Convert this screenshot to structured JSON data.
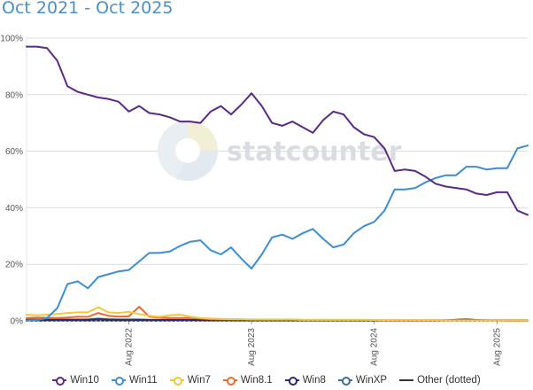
{
  "subtitle": "Oct 2021 - Oct 2025",
  "watermark": "statcounter",
  "chart_data": {
    "type": "line",
    "subtitle": "Oct 2021 - Oct 2025",
    "x_start": "2021-10",
    "x_tick_labels": [
      "Aug 2022",
      "Aug 2023",
      "Aug 2024",
      "Aug 2025"
    ],
    "x_tick_months": [
      "2022-08",
      "2023-08",
      "2024-08",
      "2025-08"
    ],
    "y_tick_labels": [
      "0%",
      "20%",
      "40%",
      "60%",
      "80%",
      "100%"
    ],
    "ylim": [
      0,
      100
    ],
    "grid": true,
    "legend_position": "bottom",
    "series": [
      {
        "name": "Win10",
        "color": "#5b2a86",
        "values": [
          97.0,
          97.0,
          96.5,
          92,
          83,
          81,
          80,
          79,
          78.5,
          77.5,
          74,
          76,
          73.5,
          73,
          72,
          70.5,
          70.5,
          70,
          74,
          76,
          73,
          76.5,
          80.5,
          76,
          70,
          69,
          70.5,
          68.5,
          66.5,
          71,
          74,
          73,
          68.5,
          66,
          65,
          61,
          53,
          53.5,
          53,
          51,
          48.5,
          47.5,
          47,
          46.5,
          45,
          44.5,
          45.5,
          45.5,
          39,
          37.5
        ]
      },
      {
        "name": "Win11",
        "color": "#3d8ed0",
        "values": [
          0.2,
          0.3,
          1.0,
          4.5,
          13,
          14,
          11.5,
          15.5,
          16.5,
          17.5,
          18,
          21,
          24,
          24,
          24.5,
          26.5,
          28,
          28.5,
          25,
          23.5,
          26,
          22,
          18.5,
          23.5,
          29.5,
          30.5,
          29,
          31,
          32.5,
          29,
          26,
          27,
          31,
          33.5,
          35,
          39,
          46.5,
          46.5,
          47,
          49,
          50.5,
          51.5,
          51.5,
          54.5,
          54.5,
          53.5,
          54,
          54,
          61,
          62
        ]
      },
      {
        "name": "Win7",
        "color": "#f2c73b",
        "values": [
          2.2,
          2.0,
          2.2,
          2.4,
          2.8,
          3.0,
          3.0,
          4.8,
          3.0,
          2.8,
          3.2,
          2.4,
          1.8,
          1.4,
          2.0,
          2.2,
          1.5,
          1.0,
          0.8,
          0.7,
          0.6,
          0.6,
          0.5,
          0.5,
          0.5,
          0.5,
          0.5,
          0.4,
          0.4,
          0.4,
          0.4,
          0.4,
          0.4,
          0.4,
          0.3,
          0.3,
          0.3,
          0.3,
          0.3,
          0.3,
          0.3,
          0.2,
          0.2,
          0.2,
          0.2,
          0.2,
          0.2,
          0.2,
          0.2,
          0.2
        ]
      },
      {
        "name": "Win8.1",
        "color": "#ee6a2c",
        "values": [
          1.0,
          1.2,
          1.1,
          1.0,
          1.2,
          1.5,
          1.4,
          2.8,
          1.8,
          1.5,
          1.6,
          5.0,
          1.5,
          1.2,
          1.0,
          1.0,
          1.0,
          0.8,
          0.6,
          0.5,
          0.5,
          0.5,
          0.4,
          0.4,
          0.4,
          0.4,
          0.4,
          0.3,
          0.3,
          0.3,
          0.3,
          0.3,
          0.3,
          0.3,
          0.3,
          0.2,
          0.2,
          0.2,
          0.2,
          0.2,
          0.2,
          0.2,
          0.2,
          0.2,
          0.2,
          0.2,
          0.2,
          0.1,
          0.1,
          0.1
        ]
      },
      {
        "name": "Win8",
        "color": "#2a2a6e",
        "values": [
          0.3,
          0.3,
          0.3,
          0.3,
          0.3,
          0.3,
          0.3,
          0.6,
          0.4,
          0.3,
          0.3,
          0.3,
          0.3,
          0.3,
          0.3,
          0.3,
          0.3,
          0.3,
          0.2,
          0.2,
          0.2,
          0.2,
          0.2,
          0.2,
          0.2,
          0.2,
          0.2,
          0.2,
          0.2,
          0.2,
          0.2,
          0.2,
          0.2,
          0.2,
          0.2,
          0.2,
          0.2,
          0.2,
          0.2,
          0.2,
          0.2,
          0.2,
          0.4,
          0.5,
          0.3,
          0.2,
          0.2,
          0.2,
          0.2,
          0.2
        ]
      },
      {
        "name": "WinXP",
        "color": "#3a6f9a",
        "values": [
          0.5,
          0.5,
          0.5,
          0.5,
          0.5,
          0.5,
          0.5,
          0.8,
          0.6,
          0.5,
          0.5,
          0.5,
          0.4,
          0.4,
          0.4,
          0.4,
          0.4,
          0.3,
          0.3,
          0.3,
          0.3,
          0.3,
          0.3,
          0.3,
          0.3,
          0.3,
          0.3,
          0.3,
          0.3,
          0.2,
          0.2,
          0.2,
          0.2,
          0.2,
          0.2,
          0.2,
          0.2,
          0.2,
          0.2,
          0.2,
          0.2,
          0.2,
          0.3,
          0.4,
          0.2,
          0.2,
          0.2,
          0.2,
          0.2,
          0.2
        ]
      },
      {
        "name": "Other (dotted)",
        "color": "#333333",
        "line_only": true,
        "values": [
          0.1,
          0.1,
          0.1,
          0.1,
          0.1,
          0.1,
          0.1,
          0.1,
          0.1,
          0.1,
          0.1,
          0.1,
          0.1,
          0.1,
          0.1,
          0.1,
          0.1,
          0.1,
          0.1,
          0.1,
          0.1,
          0.1,
          0.1,
          0.1,
          0.1,
          0.1,
          0.1,
          0.1,
          0.1,
          0.1,
          0.1,
          0.1,
          0.1,
          0.1,
          0.1,
          0.1,
          0.1,
          0.1,
          0.1,
          0.1,
          0.1,
          0.1,
          0.1,
          0.1,
          0.1,
          0.1,
          0.1,
          0.1,
          0.1,
          0.1
        ]
      }
    ]
  }
}
